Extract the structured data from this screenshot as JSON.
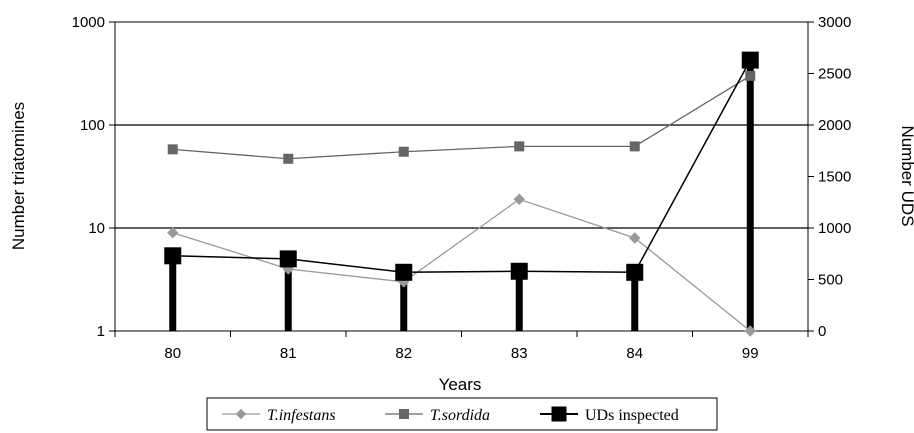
{
  "chart_data": {
    "type": "line",
    "categories": [
      "80",
      "81",
      "82",
      "83",
      "84",
      "99"
    ],
    "xlabel": "Years",
    "ylabel": "Number triatomines",
    "y2label": "Number UDS",
    "y_scale": "log",
    "ylim": [
      1,
      1000
    ],
    "y_ticks": [
      "1",
      "10",
      "100",
      "1000"
    ],
    "y2lim": [
      0,
      3000
    ],
    "y2_ticks": [
      "0",
      "500",
      "1000",
      "1500",
      "2000",
      "2500",
      "3000"
    ],
    "grid": "horizontal at 10 and 100",
    "legend_position": "bottom",
    "series": [
      {
        "name": "T.infestans",
        "axis": "left",
        "marker": "diamond",
        "color": "#999999",
        "values": [
          9,
          4,
          3,
          19,
          8,
          1
        ]
      },
      {
        "name": "T.sordida",
        "axis": "left",
        "marker": "square",
        "color": "#666666",
        "values": [
          58,
          47,
          55,
          62,
          62,
          300
        ]
      },
      {
        "name": "UDs inspected",
        "axis": "right",
        "marker": "square",
        "color": "#000000",
        "style": "line with vertical bars",
        "values": [
          730,
          700,
          570,
          580,
          570,
          2630
        ]
      }
    ]
  }
}
